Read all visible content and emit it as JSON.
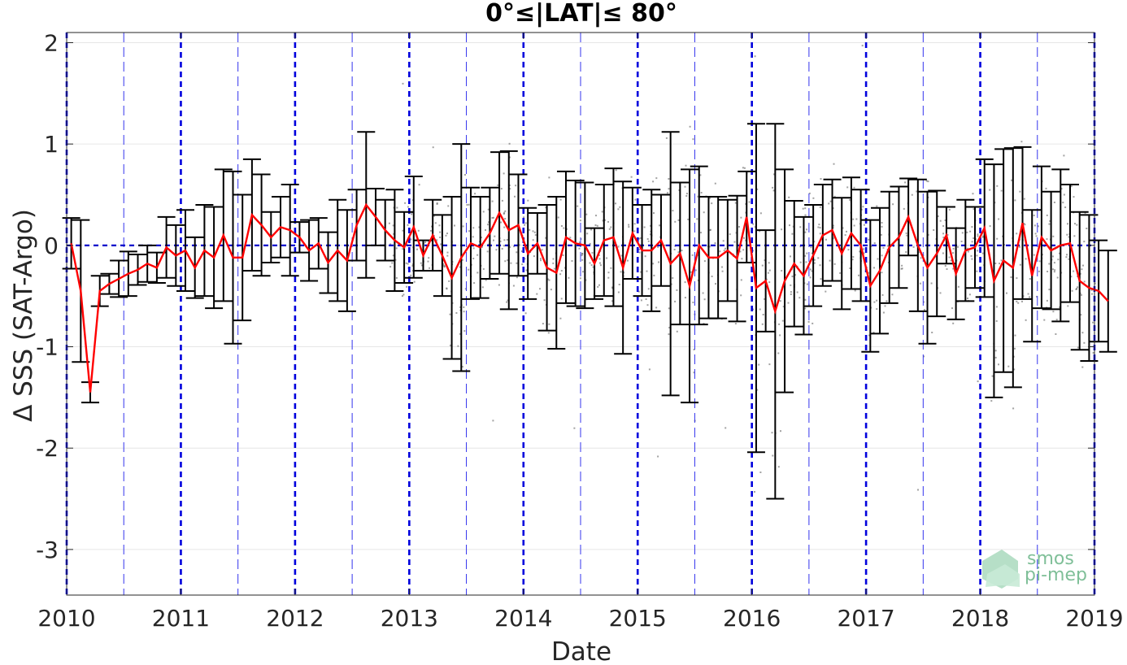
{
  "chart_data": {
    "type": "line",
    "title": "0°≤|LAT|≤ 80°",
    "xlabel": "Date",
    "ylabel": "Δ SSS (SAT-Argo)",
    "xlim": [
      2010,
      2019
    ],
    "ylim": [
      -3.45,
      2.1
    ],
    "x_ticks": [
      "2010",
      "2011",
      "2012",
      "2013",
      "2014",
      "2015",
      "2016",
      "2017",
      "2018",
      "2019"
    ],
    "y_ticks": [
      "2",
      "1",
      "0",
      "-1",
      "-2",
      "-3"
    ],
    "y_tick_values": [
      2,
      1,
      0,
      -1,
      -2,
      -3
    ],
    "grid": true,
    "reference_line": {
      "y": 0,
      "style": "dashed",
      "color": "#0000cc"
    },
    "year_lines": {
      "color": "#0000dd",
      "style": "dashed"
    },
    "halfyear_lines": {
      "color": "#3333ee",
      "style": "dashed"
    },
    "series": [
      {
        "kind": "monthly-mean",
        "color": "#ff0000",
        "x_start": 2010.04,
        "x_step": 0.0833,
        "mean": [
          0.02,
          -0.45,
          -1.45,
          -0.45,
          -0.38,
          -0.33,
          -0.28,
          -0.24,
          -0.18,
          -0.22,
          -0.02,
          -0.1,
          -0.05,
          -0.22,
          -0.05,
          -0.12,
          0.1,
          -0.12,
          -0.12,
          0.3,
          0.2,
          0.08,
          0.18,
          0.15,
          0.08,
          -0.05,
          0.02,
          -0.17,
          -0.05,
          -0.15,
          0.2,
          0.4,
          0.28,
          0.15,
          0.05,
          -0.02,
          0.18,
          -0.1,
          0.1,
          -0.1,
          -0.32,
          -0.12,
          0.02,
          -0.02,
          0.12,
          0.32,
          0.15,
          0.2,
          -0.08,
          0.02,
          -0.22,
          -0.27,
          0.08,
          0.02,
          0.0,
          -0.18,
          0.05,
          0.08,
          -0.22,
          0.12,
          -0.05,
          -0.05,
          0.05,
          -0.18,
          -0.08,
          -0.4,
          0.0,
          -0.12,
          -0.12,
          -0.05,
          -0.13,
          0.28,
          -0.42,
          -0.35,
          -0.65,
          -0.35,
          -0.18,
          -0.3,
          -0.1,
          0.1,
          0.15,
          -0.08,
          0.12,
          0.0,
          -0.4,
          -0.25,
          -0.02,
          0.08,
          0.28,
          0.0,
          -0.22,
          -0.08,
          0.1,
          -0.28,
          -0.05,
          -0.02,
          0.17,
          -0.35,
          -0.15,
          -0.22,
          0.22,
          -0.3,
          0.08,
          -0.05,
          0.0,
          0.02,
          -0.35,
          -0.42,
          -0.45,
          -0.55
        ],
        "err": [
          0.25,
          0.7,
          0.1,
          0.15,
          0.1,
          0.18,
          0.22,
          0.15,
          0.18,
          0.15,
          0.3,
          0.3,
          0.4,
          0.3,
          0.45,
          0.5,
          0.65,
          0.85,
          0.62,
          0.55,
          0.5,
          0.25,
          0.3,
          0.45,
          0.15,
          0.3,
          0.25,
          0.3,
          0.5,
          0.5,
          0.35,
          0.72,
          0.28,
          0.3,
          0.5,
          0.35,
          0.5,
          0.15,
          0.35,
          0.4,
          0.8,
          1.12,
          0.55,
          0.5,
          0.45,
          0.6,
          0.78,
          0.5,
          0.45,
          0.3,
          0.62,
          0.75,
          0.65,
          0.62,
          0.62,
          0.35,
          0.55,
          0.68,
          0.85,
          0.45,
          0.45,
          0.6,
          0.45,
          1.3,
          0.7,
          1.15,
          0.78,
          0.6,
          0.6,
          0.5,
          0.62,
          0.45,
          1.62,
          0.5,
          1.85,
          1.1,
          0.62,
          0.58,
          0.5,
          0.5,
          0.5,
          0.55,
          0.55,
          0.55,
          0.65,
          0.62,
          0.55,
          0.5,
          0.38,
          0.65,
          0.75,
          0.62,
          0.28,
          0.45,
          0.5,
          0.4,
          0.68,
          1.15,
          1.1,
          1.18,
          0.75,
          0.65,
          0.7,
          0.58,
          0.75,
          0.58,
          0.68,
          0.72,
          0.5,
          0.5
        ]
      }
    ],
    "scatter": {
      "kind": "individual-matchups",
      "color": "#555555",
      "count": 900,
      "begins": 2012.8
    },
    "logo": {
      "line1": "smos",
      "line2": "pi-mep"
    }
  }
}
